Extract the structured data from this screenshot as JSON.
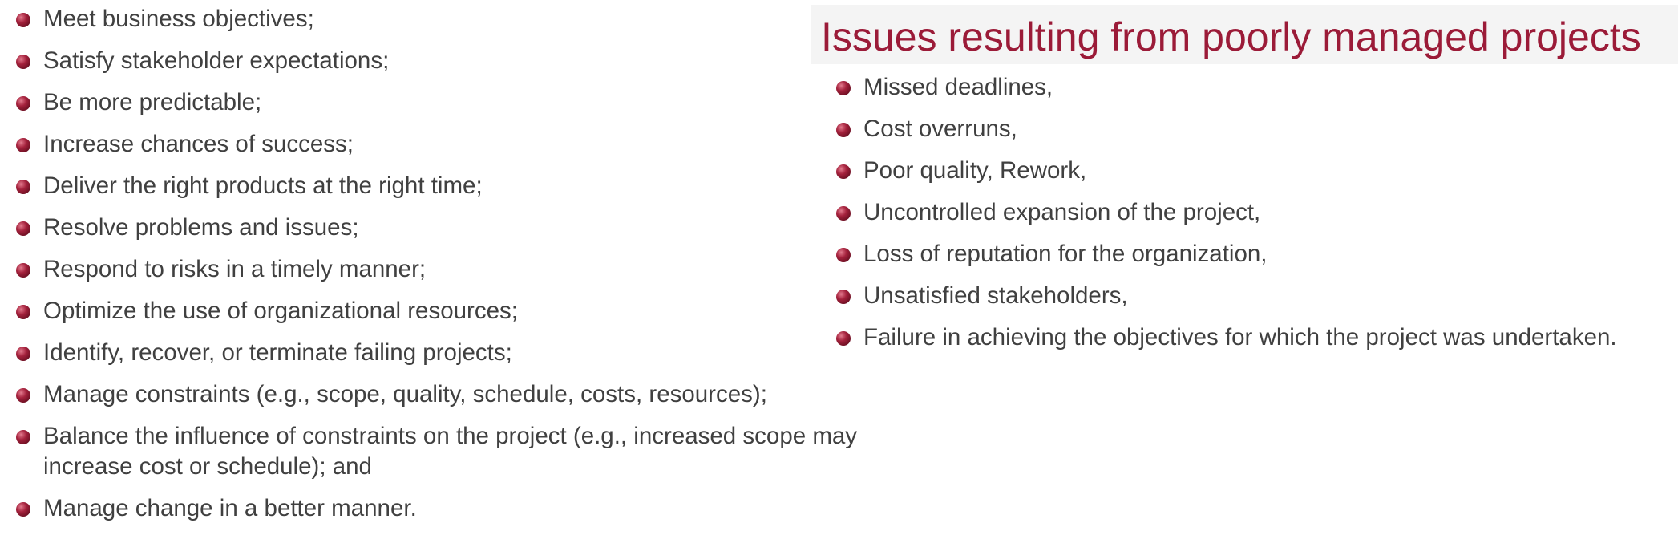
{
  "left_list": [
    "Meet business objectives;",
    "Satisfy stakeholder expectations;",
    "Be more predictable;",
    "Increase chances of success;",
    "Deliver the right products at the right time;",
    "Resolve problems and issues;",
    "Respond to risks in a timely manner;",
    "Optimize the use of organizational resources;",
    "Identify, recover, or terminate failing projects;",
    "Manage constraints (e.g., scope, quality, schedule, costs, resources);",
    "Balance the influence of constraints on the project (e.g., increased scope may increase cost or schedule); and",
    "Manage change in a better manner."
  ],
  "right_section": {
    "title": "Issues resulting from poorly managed projects",
    "items": [
      "Missed deadlines,",
      "Cost overruns,",
      "Poor quality, Rework,",
      "Uncontrolled expansion of the project,",
      "Loss of reputation for the organization,",
      "Unsatisfied stakeholders,",
      "Failure in achieving the objectives for which the project was undertaken."
    ]
  },
  "colors": {
    "title": "#9b1b38",
    "bullet": "#8e1a33",
    "text": "#404040",
    "title_band": "#f4f4f4"
  },
  "icons": {
    "bullet": "ball-bullet-icon"
  }
}
